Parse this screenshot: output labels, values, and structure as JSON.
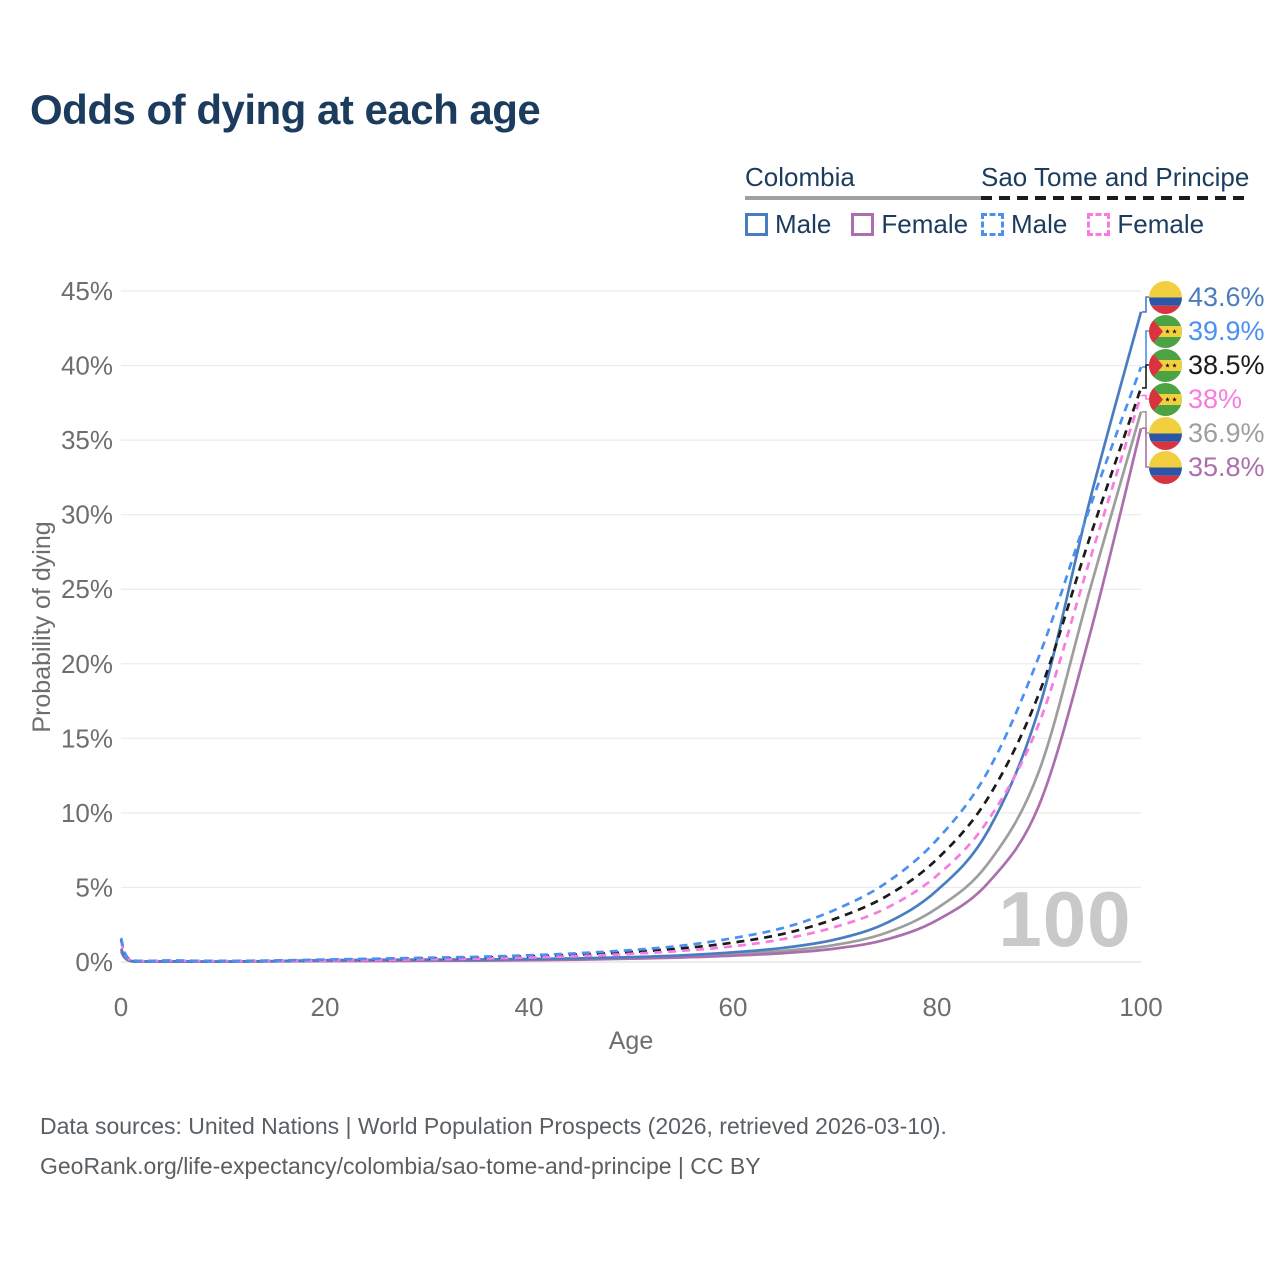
{
  "title": "Odds of dying at each age",
  "watermark": "100",
  "legend": {
    "position": "top-right",
    "groups": [
      {
        "label": "Colombia",
        "line_style": "solid",
        "underline_color": "#a0a0a0",
        "items": [
          {
            "label": "Male",
            "color": "#4a7dc0",
            "dashed": false
          },
          {
            "label": "Female",
            "color": "#ab6fae",
            "dashed": false
          }
        ]
      },
      {
        "label": "Sao Tome and Principe",
        "line_style": "dashed",
        "underline_color": "#1b1b1b",
        "items": [
          {
            "label": "Male",
            "color": "#4a90f2",
            "dashed": true
          },
          {
            "label": "Female",
            "color": "#f97be0",
            "dashed": true
          }
        ]
      }
    ]
  },
  "axes": {
    "x": {
      "label": "Age",
      "min": 0,
      "max": 100,
      "ticks": [
        0,
        20,
        40,
        60,
        80,
        100
      ]
    },
    "y": {
      "label": "Probability of dying",
      "min": 0,
      "max": 45,
      "unit": "%",
      "ticks": [
        "0%",
        "5%",
        "10%",
        "15%",
        "20%",
        "25%",
        "30%",
        "35%",
        "40%",
        "45%"
      ],
      "grid": true
    }
  },
  "footer": {
    "line1": "Data sources: United Nations | World Population Prospects (2026, retrieved 2026-03-10).",
    "line2": "GeoRank.org/life-expectancy/colombia/sao-tome-and-principe | CC BY"
  },
  "chart_data": {
    "type": "line",
    "title": "Odds of dying at each age",
    "xlabel": "Age",
    "ylabel": "Probability of dying",
    "xlim": [
      0,
      100
    ],
    "ylim": [
      0,
      45
    ],
    "unit": "percent",
    "grid": "horizontal-only",
    "x": [
      0,
      1,
      5,
      10,
      15,
      20,
      25,
      30,
      35,
      40,
      45,
      50,
      55,
      60,
      65,
      70,
      75,
      80,
      85,
      90,
      95,
      100
    ],
    "series": [
      {
        "id": "colombia-male",
        "name": "Colombia Male",
        "country": "Colombia",
        "sex": "male",
        "color": "#4a7dc0",
        "label_color": "#4a7dc0",
        "dash": false,
        "end_label": "43.6%",
        "values": [
          0.9,
          0.07,
          0.04,
          0.03,
          0.06,
          0.12,
          0.15,
          0.16,
          0.17,
          0.2,
          0.25,
          0.33,
          0.45,
          0.65,
          0.95,
          1.5,
          2.6,
          4.8,
          8.8,
          17.0,
          31.0,
          43.6
        ]
      },
      {
        "id": "sao-tome-male",
        "name": "Sao Tome and Principe Male",
        "country": "Sao Tome and Principe",
        "sex": "male",
        "color": "#4a90f2",
        "label_color": "#4a90f2",
        "dash": true,
        "end_label": "39.9%",
        "values": [
          1.6,
          0.12,
          0.1,
          0.07,
          0.1,
          0.16,
          0.22,
          0.28,
          0.35,
          0.45,
          0.6,
          0.8,
          1.1,
          1.6,
          2.3,
          3.5,
          5.3,
          8.2,
          12.8,
          20.5,
          30.5,
          39.9
        ]
      },
      {
        "id": "sao-tome-total",
        "name": "Sao Tome and Principe",
        "country": "Sao Tome and Principe",
        "sex": "both",
        "color": "#1b1b1b",
        "label_color": "#1b1b1b",
        "dash": true,
        "end_label": "38.5%",
        "values": [
          1.5,
          0.11,
          0.09,
          0.06,
          0.09,
          0.13,
          0.18,
          0.23,
          0.29,
          0.38,
          0.5,
          0.67,
          0.92,
          1.3,
          1.9,
          2.9,
          4.4,
          6.9,
          11.0,
          18.0,
          28.5,
          38.5
        ]
      },
      {
        "id": "sao-tome-female",
        "name": "Sao Tome and Principe Female",
        "country": "Sao Tome and Principe",
        "sex": "female",
        "color": "#f97be0",
        "label_color": "#f97be0",
        "dash": true,
        "end_label": "38%",
        "values": [
          1.4,
          0.1,
          0.08,
          0.05,
          0.07,
          0.1,
          0.14,
          0.18,
          0.23,
          0.3,
          0.4,
          0.55,
          0.75,
          1.05,
          1.55,
          2.35,
          3.6,
          5.8,
          9.5,
          16.0,
          27.0,
          38.0
        ]
      },
      {
        "id": "colombia-total",
        "name": "Colombia",
        "country": "Colombia",
        "sex": "both",
        "color": "#9e9e9e",
        "label_color": "#9e9e9e",
        "dash": false,
        "end_label": "36.9%",
        "values": [
          0.8,
          0.06,
          0.035,
          0.025,
          0.05,
          0.09,
          0.11,
          0.12,
          0.13,
          0.16,
          0.2,
          0.27,
          0.37,
          0.52,
          0.75,
          1.15,
          1.95,
          3.6,
          6.6,
          12.8,
          25.0,
          36.9
        ]
      },
      {
        "id": "colombia-female",
        "name": "Colombia Female",
        "country": "Colombia",
        "sex": "female",
        "color": "#ab6fae",
        "label_color": "#ab6fae",
        "dash": false,
        "end_label": "35.8%",
        "values": [
          0.7,
          0.05,
          0.03,
          0.02,
          0.04,
          0.06,
          0.07,
          0.08,
          0.09,
          0.12,
          0.16,
          0.22,
          0.3,
          0.42,
          0.6,
          0.9,
          1.5,
          2.8,
          5.3,
          10.5,
          22.0,
          35.8
        ]
      }
    ]
  }
}
